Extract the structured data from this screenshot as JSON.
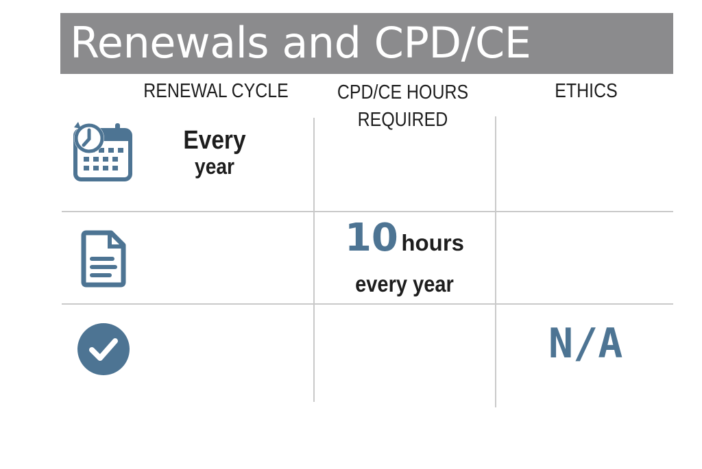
{
  "title": "Renewals and CPD/CE",
  "columns": {
    "renewal_cycle": "RENEWAL CYCLE",
    "cpd_line1": "CPD/CE HOURS",
    "cpd_line2": "REQUIRED",
    "ethics": "ETHICS"
  },
  "rows": {
    "renewal": {
      "icon": "calendar-clock-icon",
      "line1": "Every",
      "line2": "year"
    },
    "hours": {
      "icon": "document-icon",
      "number": "10",
      "unit": "hours",
      "frequency": "every year"
    },
    "ethics": {
      "icon": "check-circle-icon",
      "value": "N/A"
    }
  },
  "colors": {
    "banner": "#8b8b8d",
    "accent": "#4d7493",
    "rule": "#c9c9c9"
  }
}
